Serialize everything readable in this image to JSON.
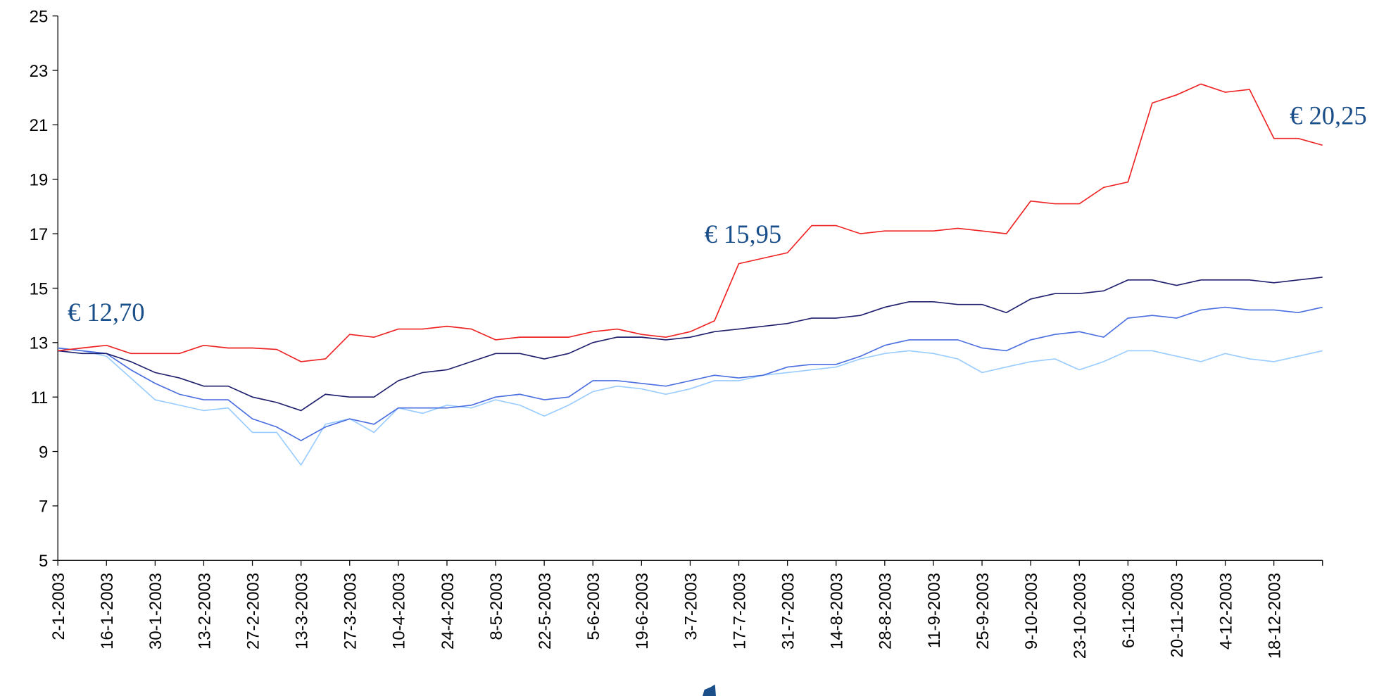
{
  "chart_data": {
    "type": "line",
    "categories": [
      "2-1-2003",
      null,
      "16-1-2003",
      null,
      "30-1-2003",
      null,
      "13-2-2003",
      null,
      "27-2-2003",
      null,
      "13-3-2003",
      null,
      "27-3-2003",
      null,
      "10-4-2003",
      null,
      "24-4-2003",
      null,
      "8-5-2003",
      null,
      "22-5-2003",
      null,
      "5-6-2003",
      null,
      "19-6-2003",
      null,
      "3-7-2003",
      null,
      "17-7-2003",
      null,
      "31-7-2003",
      null,
      "14-8-2003",
      null,
      "28-8-2003",
      null,
      "11-9-2003",
      null,
      "25-9-2003",
      null,
      "9-10-2003",
      null,
      "23-10-2003",
      null,
      "6-11-2003",
      null,
      "20-11-2003",
      null,
      "4-12-2003",
      null,
      "18-12-2003",
      null,
      null
    ],
    "series": [
      {
        "color": "#ee2222",
        "values": [
          12.7,
          12.8,
          12.9,
          12.6,
          12.6,
          12.6,
          12.9,
          12.8,
          12.8,
          12.75,
          12.3,
          12.4,
          13.3,
          13.2,
          13.5,
          13.5,
          13.6,
          13.5,
          13.1,
          13.2,
          13.2,
          13.2,
          13.4,
          13.5,
          13.3,
          13.2,
          13.4,
          13.8,
          15.9,
          16.1,
          16.3,
          17.3,
          17.3,
          17.0,
          17.1,
          17.1,
          17.1,
          17.2,
          17.1,
          17.0,
          18.2,
          18.1,
          18.1,
          18.7,
          18.9,
          21.8,
          22.1,
          22.5,
          22.2,
          22.3,
          20.5,
          20.5,
          20.25
        ]
      },
      {
        "color": "#1f1f6e",
        "values": [
          12.7,
          12.6,
          12.6,
          12.3,
          11.9,
          11.7,
          11.4,
          11.4,
          11.0,
          10.8,
          10.5,
          11.1,
          11.0,
          11.0,
          11.6,
          11.9,
          12.0,
          12.3,
          12.6,
          12.6,
          12.4,
          12.6,
          13.0,
          13.2,
          13.2,
          13.1,
          13.2,
          13.4,
          13.5,
          13.6,
          13.7,
          13.9,
          13.9,
          14.0,
          14.3,
          14.5,
          14.5,
          14.4,
          14.4,
          14.1,
          14.6,
          14.8,
          14.8,
          14.9,
          15.3,
          15.3,
          15.1,
          15.3,
          15.3,
          15.3,
          15.2,
          15.3,
          15.4
        ]
      },
      {
        "color": "#4a6ee0",
        "values": [
          12.8,
          12.7,
          12.6,
          12.0,
          11.5,
          11.1,
          10.9,
          10.9,
          10.2,
          9.9,
          9.4,
          9.9,
          10.2,
          10.0,
          10.6,
          10.6,
          10.6,
          10.7,
          11.0,
          11.1,
          10.9,
          11.0,
          11.6,
          11.6,
          11.5,
          11.4,
          11.6,
          11.8,
          11.7,
          11.8,
          12.1,
          12.2,
          12.2,
          12.5,
          12.9,
          13.1,
          13.1,
          13.1,
          12.8,
          12.7,
          13.1,
          13.3,
          13.4,
          13.2,
          13.9,
          14.0,
          13.9,
          14.2,
          14.3,
          14.2,
          14.2,
          14.1,
          14.3
        ]
      },
      {
        "color": "#99ccff",
        "values": [
          12.8,
          12.7,
          12.5,
          11.7,
          10.9,
          10.7,
          10.5,
          10.6,
          9.7,
          9.7,
          8.5,
          10.0,
          10.2,
          9.7,
          10.6,
          10.4,
          10.7,
          10.6,
          10.9,
          10.7,
          10.3,
          10.7,
          11.2,
          11.4,
          11.3,
          11.1,
          11.3,
          11.6,
          11.6,
          11.8,
          11.9,
          12.0,
          12.1,
          12.4,
          12.6,
          12.7,
          12.6,
          12.4,
          11.9,
          12.1,
          12.3,
          12.4,
          12.0,
          12.3,
          12.7,
          12.7,
          12.5,
          12.3,
          12.6,
          12.4,
          12.3,
          12.5,
          12.7
        ]
      }
    ],
    "ylim": [
      5,
      25
    ],
    "yticks": [
      5,
      7,
      9,
      11,
      13,
      15,
      17,
      19,
      21,
      23,
      25
    ],
    "grid": false,
    "annotations": [
      {
        "text": "€ 12,70"
      },
      {
        "text": "€ 15,95"
      },
      {
        "text": "€ 20,25"
      }
    ]
  }
}
